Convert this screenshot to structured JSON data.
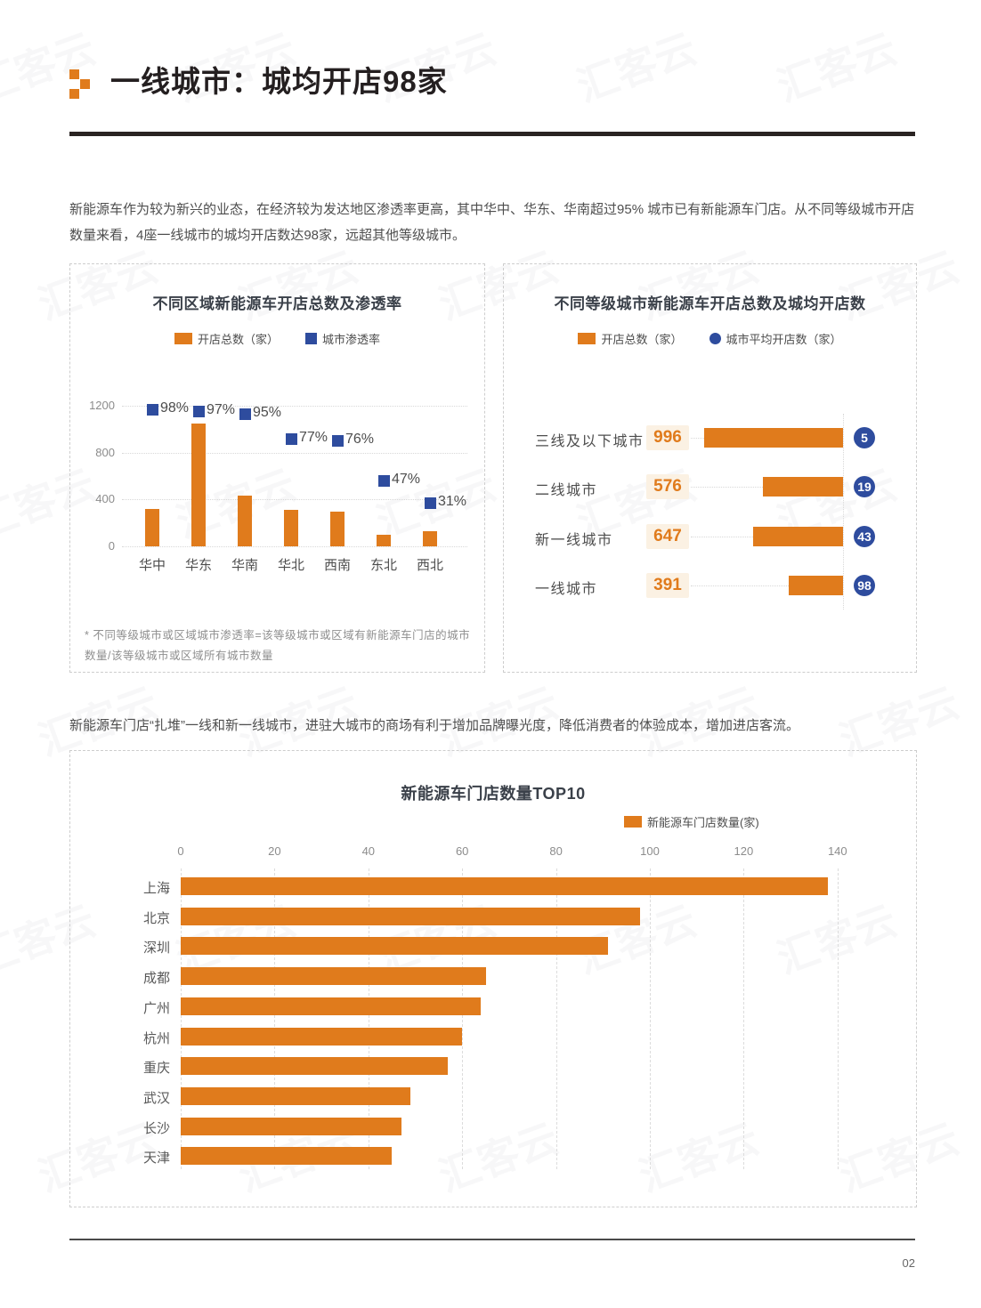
{
  "header": {
    "title": "一线城市：城均开店98家"
  },
  "intro": "新能源车作为较为新兴的业态，在经济较为发达地区渗透率更高，其中华中、华东、华南超过95% 城市已有新能源车门店。从不同等级城市开店数量来看，4座一线城市的城均开店数达98家，远超其他等级城市。",
  "mid_paragraph": "新能源车门店“扎堆”一线和新一线城市，进驻大城市的商场有利于增加品牌曝光度，降低消费者的体验成本，增加进店客流。",
  "watermark": {
    "text": "汇客云"
  },
  "page": {
    "number": "02"
  },
  "colors": {
    "orange": "#E07B1C",
    "blue": "#2E4C9E",
    "chip_bg": "#FBF1E3",
    "chip_text": "#E07B1C",
    "grid": "#D8D8D8",
    "axis_text": "#8C8C8C",
    "label_text": "#4D4D4D"
  },
  "chart_data": [
    {
      "type": "bar",
      "title": "不同区域新能源车开店总数及渗透率",
      "legend": [
        {
          "label": "开店总数（家）",
          "swatch": "square-wide",
          "color": "orange"
        },
        {
          "label": "城市渗透率",
          "swatch": "square",
          "color": "blue"
        }
      ],
      "categories": [
        "华中",
        "华东",
        "华南",
        "华北",
        "西南",
        "东北",
        "西北"
      ],
      "series": [
        {
          "name": "开店总数（家）",
          "values": [
            320,
            1050,
            430,
            310,
            295,
            100,
            130
          ]
        },
        {
          "name": "城市渗透率",
          "values_pct": [
            98,
            97,
            95,
            77,
            76,
            47,
            31
          ]
        }
      ],
      "ylim": [
        0,
        1200
      ],
      "yticks": [
        0,
        400,
        800,
        1200
      ],
      "pct_axis_lim": [
        0,
        100
      ],
      "footnote": "* 不同等级城市或区域城市渗透率=该等级城市或区域有新能源车门店的城市数量/该等级城市或区域所有城市数量"
    },
    {
      "type": "bar-horizontal",
      "title": "不同等级城市新能源车开店总数及城均开店数",
      "legend": [
        {
          "label": "开店总数（家）",
          "swatch": "square-wide",
          "color": "orange"
        },
        {
          "label": "城市平均开店数（家）",
          "swatch": "circle",
          "color": "blue"
        }
      ],
      "rows": [
        {
          "label": "三线及以下城市",
          "total": 996,
          "avg": 5
        },
        {
          "label": "二线城市",
          "total": 576,
          "avg": 19
        },
        {
          "label": "新一线城市",
          "total": 647,
          "avg": 43
        },
        {
          "label": "一线城市",
          "total": 391,
          "avg": 98
        }
      ]
    },
    {
      "type": "bar-horizontal",
      "title": "新能源车门店数量TOP10",
      "legend": [
        {
          "label": "新能源车门店数量(家)",
          "swatch": "square-wide",
          "color": "orange"
        }
      ],
      "categories": [
        "上海",
        "北京",
        "深圳",
        "成都",
        "广州",
        "杭州",
        "重庆",
        "武汉",
        "长沙",
        "天津"
      ],
      "values": [
        138,
        98,
        91,
        65,
        64,
        60,
        57,
        49,
        47,
        45
      ],
      "xticks": [
        0,
        20,
        40,
        60,
        80,
        100,
        120,
        140
      ],
      "xlim": [
        0,
        140
      ]
    }
  ]
}
